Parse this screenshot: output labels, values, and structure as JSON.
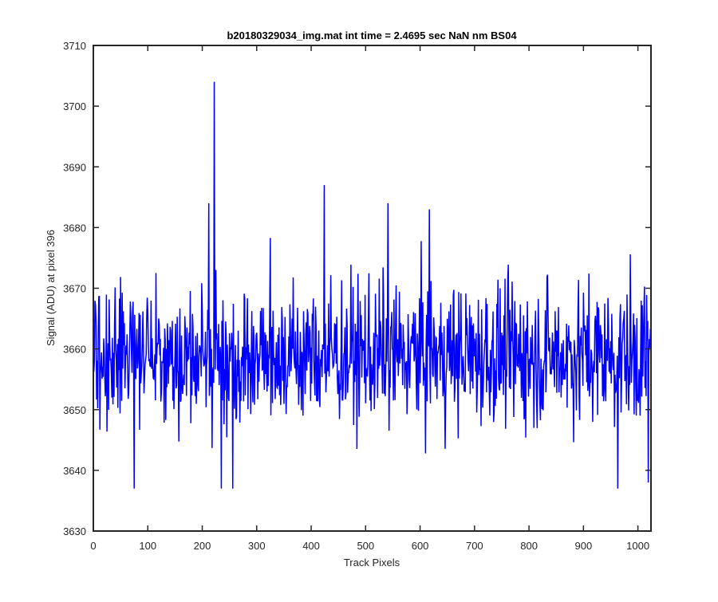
{
  "chart_data": {
    "type": "line",
    "title": "b20180329034_img.mat int time = 2.4695 sec  NaN nm BS04",
    "xlabel": "Track Pixels",
    "ylabel": "Signal (ADU) at pixel 396",
    "xlim": [
      0,
      1024
    ],
    "ylim": [
      3630,
      3710
    ],
    "xticks": [
      0,
      100,
      200,
      300,
      400,
      500,
      600,
      700,
      800,
      900,
      1000
    ],
    "yticks": [
      3630,
      3640,
      3650,
      3660,
      3670,
      3680,
      3690,
      3700,
      3710
    ],
    "grid": false,
    "legend": "none",
    "series": [
      {
        "color": "#0000ff",
        "n_points": 1024,
        "x_start": 1,
        "x_end": 1024,
        "notable_points": [
          {
            "x": 222,
            "y": 3704
          },
          {
            "x": 424,
            "y": 3687
          },
          {
            "x": 212,
            "y": 3684
          },
          {
            "x": 541,
            "y": 3684
          },
          {
            "x": 617,
            "y": 3683
          },
          {
            "x": 75,
            "y": 3637
          },
          {
            "x": 235,
            "y": 3637
          },
          {
            "x": 256,
            "y": 3637
          },
          {
            "x": 963,
            "y": 3637
          },
          {
            "x": 1019,
            "y": 3638
          }
        ],
        "mean": 3659,
        "typical_range": [
          3645,
          3675
        ]
      }
    ]
  }
}
